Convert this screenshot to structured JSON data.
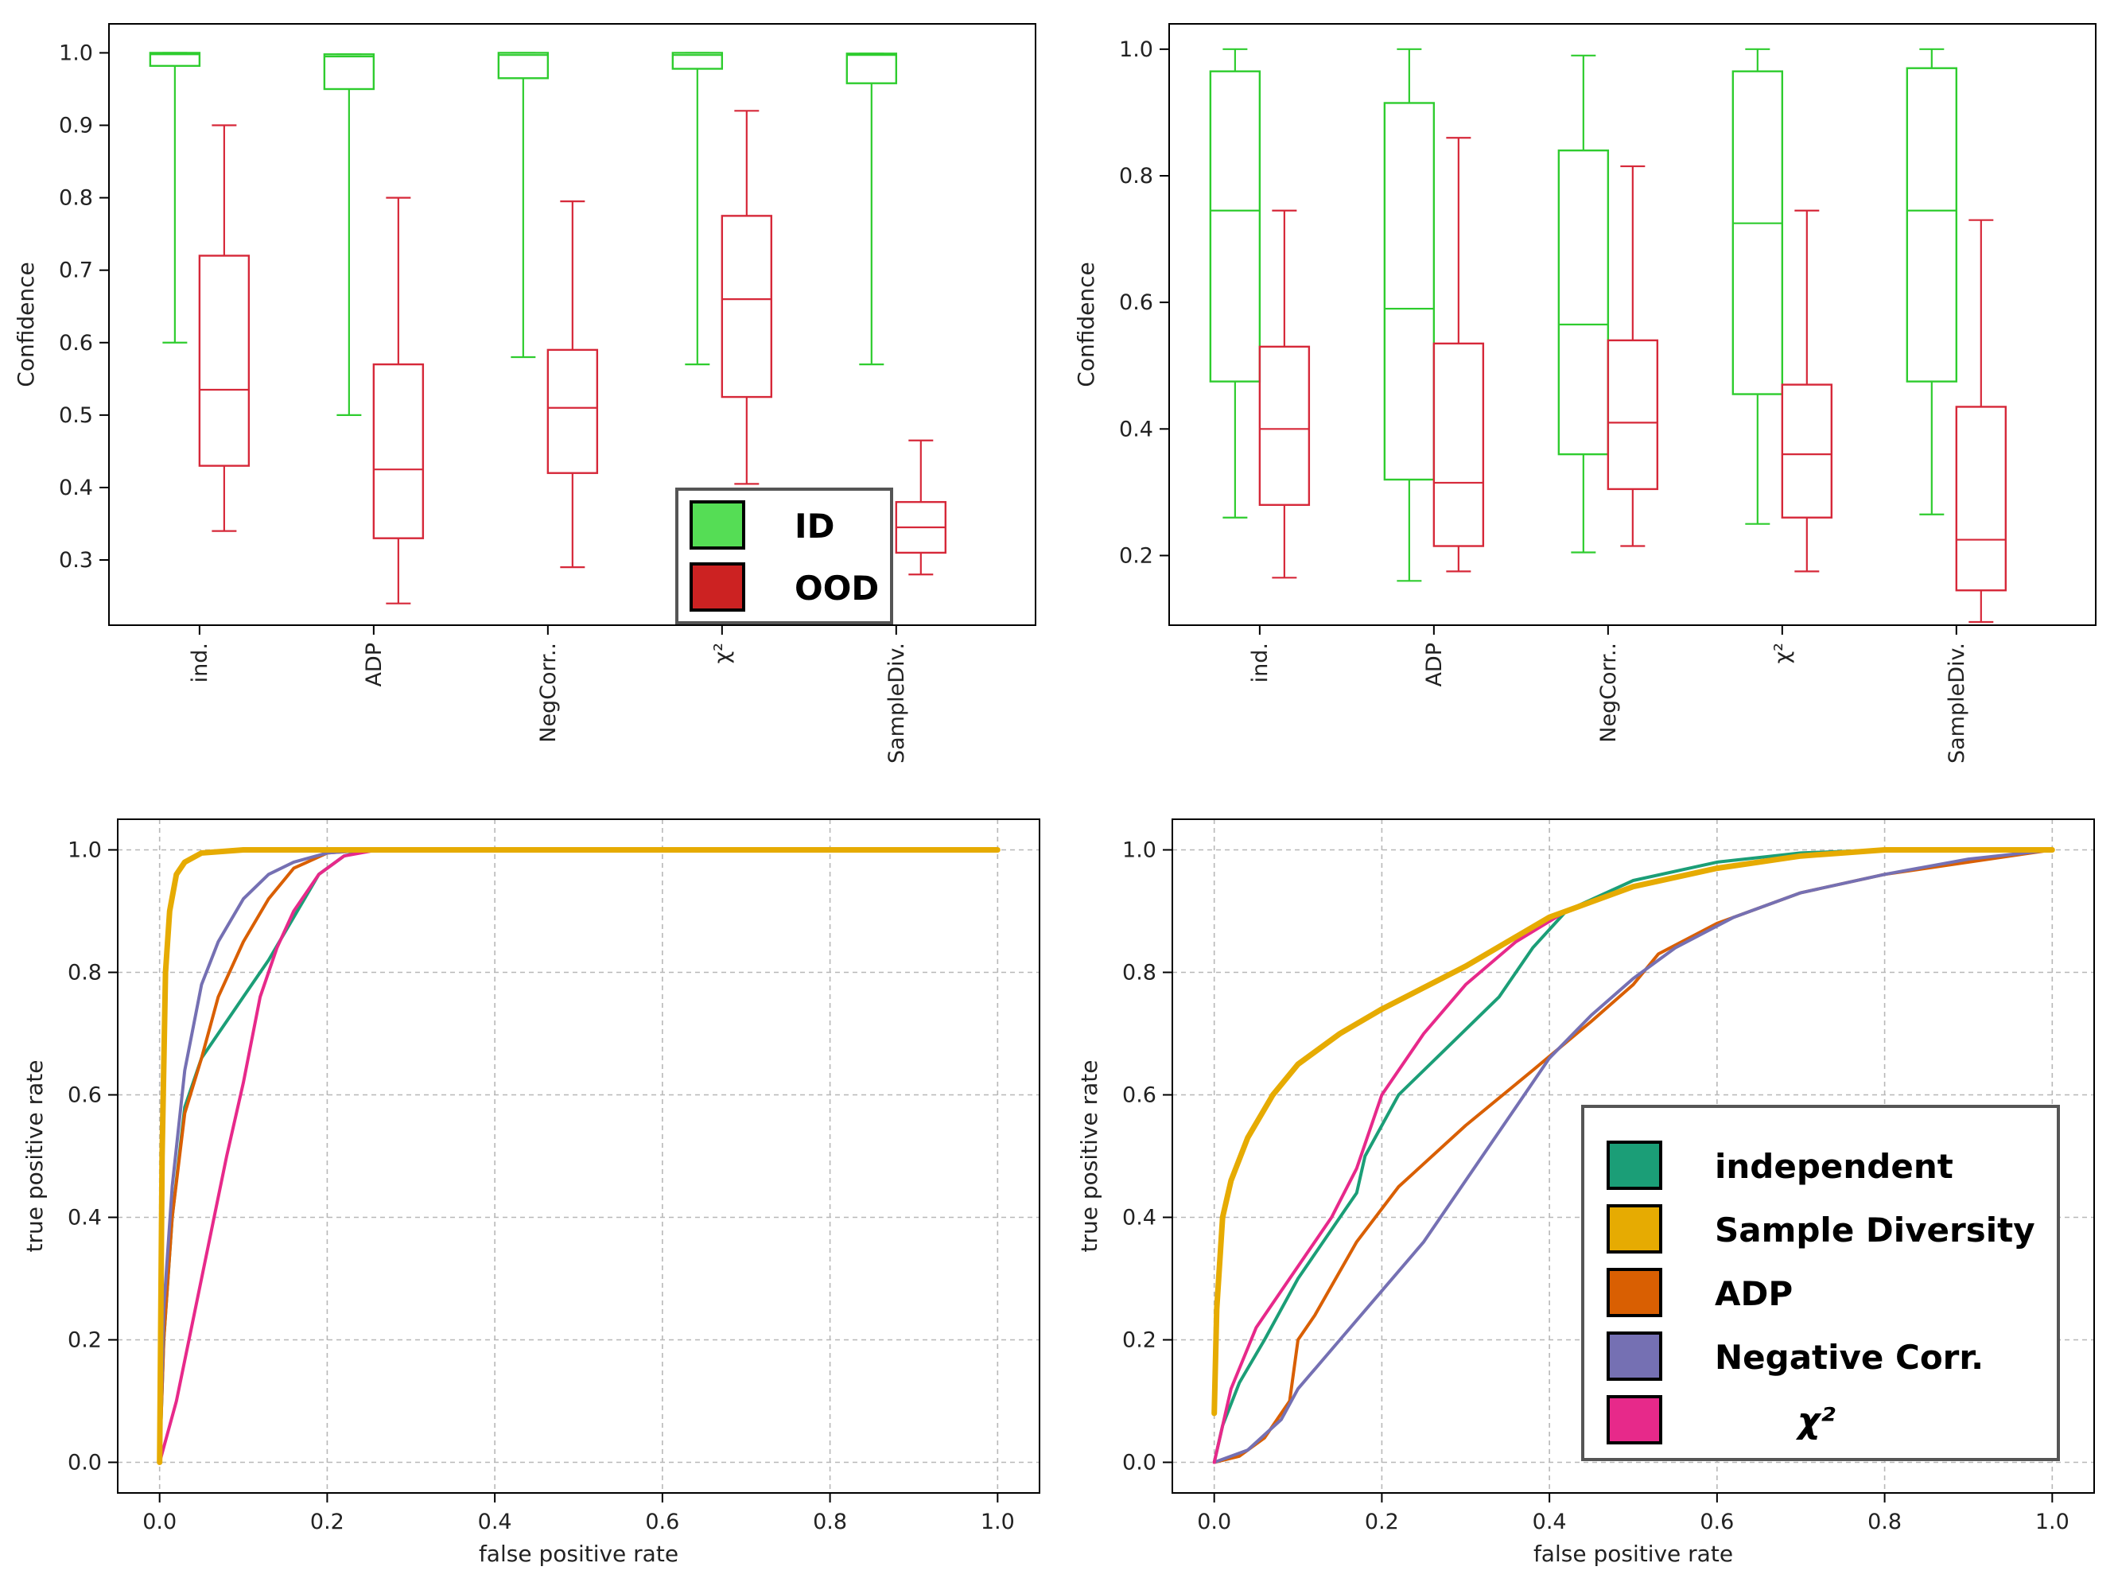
{
  "colors": {
    "id": "#2ecc2e",
    "ood": "#d62839",
    "independent": "#1b9e77",
    "sample_diversity": "#e6ab02",
    "adp": "#d95f02",
    "negative_corr": "#7570b3",
    "chi2": "#e7298a",
    "id_legend_fill": "#55dd55",
    "ood_legend_fill": "#cc2222"
  },
  "chart_data": [
    {
      "type": "box",
      "ylabel": "Confidence",
      "ylim": [
        0.21,
        1.04
      ],
      "yticks": [
        "0.3",
        "0.4",
        "0.5",
        "0.6",
        "0.7",
        "0.8",
        "0.9",
        "1.0"
      ],
      "categories": [
        "ind.",
        "ADP",
        "NegCorr..",
        "χ²",
        "SampleDiv."
      ],
      "legend": {
        "position": "lower-right",
        "items": [
          "ID",
          "OOD"
        ]
      },
      "series": [
        {
          "name": "ID",
          "boxes": [
            {
              "whislo": 0.6,
              "q1": 0.982,
              "med": 0.998,
              "q3": 1.0,
              "whishi": 1.0
            },
            {
              "whislo": 0.5,
              "q1": 0.95,
              "med": 0.995,
              "q3": 0.998,
              "whishi": 0.998
            },
            {
              "whislo": 0.58,
              "q1": 0.965,
              "med": 0.997,
              "q3": 1.0,
              "whishi": 1.0
            },
            {
              "whislo": 0.57,
              "q1": 0.978,
              "med": 0.997,
              "q3": 1.0,
              "whishi": 1.0
            },
            {
              "whislo": 0.57,
              "q1": 0.958,
              "med": 0.997,
              "q3": 0.999,
              "whishi": 0.999
            }
          ]
        },
        {
          "name": "OOD",
          "boxes": [
            {
              "whislo": 0.34,
              "q1": 0.43,
              "med": 0.535,
              "q3": 0.72,
              "whishi": 0.9
            },
            {
              "whislo": 0.24,
              "q1": 0.33,
              "med": 0.425,
              "q3": 0.57,
              "whishi": 0.8
            },
            {
              "whislo": 0.29,
              "q1": 0.42,
              "med": 0.51,
              "q3": 0.59,
              "whishi": 0.795
            },
            {
              "whislo": 0.405,
              "q1": 0.525,
              "med": 0.66,
              "q3": 0.775,
              "whishi": 0.92
            },
            {
              "whislo": 0.28,
              "q1": 0.31,
              "med": 0.345,
              "q3": 0.38,
              "whishi": 0.465
            }
          ]
        }
      ]
    },
    {
      "type": "box",
      "ylabel": "Confidence",
      "ylim": [
        0.09,
        1.04
      ],
      "yticks": [
        "0.2",
        "0.4",
        "0.6",
        "0.8",
        "1.0"
      ],
      "categories": [
        "ind.",
        "ADP",
        "NegCorr..",
        "χ²",
        "SampleDiv."
      ],
      "series": [
        {
          "name": "ID",
          "boxes": [
            {
              "whislo": 0.26,
              "q1": 0.475,
              "med": 0.745,
              "q3": 0.965,
              "whishi": 1.0
            },
            {
              "whislo": 0.16,
              "q1": 0.32,
              "med": 0.59,
              "q3": 0.915,
              "whishi": 1.0
            },
            {
              "whislo": 0.205,
              "q1": 0.36,
              "med": 0.565,
              "q3": 0.84,
              "whishi": 0.99
            },
            {
              "whislo": 0.25,
              "q1": 0.455,
              "med": 0.725,
              "q3": 0.965,
              "whishi": 1.0
            },
            {
              "whislo": 0.265,
              "q1": 0.475,
              "med": 0.745,
              "q3": 0.97,
              "whishi": 1.0
            }
          ]
        },
        {
          "name": "OOD",
          "boxes": [
            {
              "whislo": 0.165,
              "q1": 0.28,
              "med": 0.4,
              "q3": 0.53,
              "whishi": 0.745
            },
            {
              "whislo": 0.175,
              "q1": 0.215,
              "med": 0.315,
              "q3": 0.535,
              "whishi": 0.86
            },
            {
              "whislo": 0.215,
              "q1": 0.305,
              "med": 0.41,
              "q3": 0.54,
              "whishi": 0.815
            },
            {
              "whislo": 0.175,
              "q1": 0.26,
              "med": 0.36,
              "q3": 0.47,
              "whishi": 0.745
            },
            {
              "whislo": 0.095,
              "q1": 0.145,
              "med": 0.225,
              "q3": 0.435,
              "whishi": 0.73
            }
          ]
        }
      ]
    },
    {
      "type": "line",
      "xlabel": "false positive rate",
      "ylabel": "true positive rate",
      "xlim": [
        -0.05,
        1.05
      ],
      "ylim": [
        -0.05,
        1.05
      ],
      "xticks": [
        "0.0",
        "0.2",
        "0.4",
        "0.6",
        "0.8",
        "1.0"
      ],
      "yticks": [
        "0.0",
        "0.2",
        "0.4",
        "0.6",
        "0.8",
        "1.0"
      ],
      "grid": true,
      "series": [
        {
          "name": "independent",
          "color_key": "independent",
          "points": [
            [
              0,
              0
            ],
            [
              0.005,
              0.2
            ],
            [
              0.015,
              0.4
            ],
            [
              0.03,
              0.58
            ],
            [
              0.05,
              0.66
            ],
            [
              0.075,
              0.71
            ],
            [
              0.1,
              0.76
            ],
            [
              0.13,
              0.82
            ],
            [
              0.16,
              0.89
            ],
            [
              0.19,
              0.96
            ],
            [
              0.22,
              0.99
            ],
            [
              0.25,
              1.0
            ],
            [
              1.0,
              1.0
            ]
          ]
        },
        {
          "name": "Sample Diversity",
          "color_key": "sample_diversity",
          "points": [
            [
              0,
              0
            ],
            [
              0.003,
              0.5
            ],
            [
              0.007,
              0.8
            ],
            [
              0.012,
              0.9
            ],
            [
              0.02,
              0.96
            ],
            [
              0.03,
              0.98
            ],
            [
              0.05,
              0.995
            ],
            [
              0.1,
              1.0
            ],
            [
              1.0,
              1.0
            ]
          ]
        },
        {
          "name": "ADP",
          "color_key": "adp",
          "points": [
            [
              0,
              0
            ],
            [
              0.005,
              0.2
            ],
            [
              0.015,
              0.4
            ],
            [
              0.03,
              0.57
            ],
            [
              0.05,
              0.66
            ],
            [
              0.07,
              0.76
            ],
            [
              0.1,
              0.85
            ],
            [
              0.13,
              0.92
            ],
            [
              0.16,
              0.97
            ],
            [
              0.2,
              0.995
            ],
            [
              0.25,
              1.0
            ],
            [
              1.0,
              1.0
            ]
          ]
        },
        {
          "name": "Negative Corr.",
          "color_key": "negative_corr",
          "points": [
            [
              0,
              0
            ],
            [
              0.005,
              0.25
            ],
            [
              0.015,
              0.45
            ],
            [
              0.03,
              0.64
            ],
            [
              0.05,
              0.78
            ],
            [
              0.07,
              0.85
            ],
            [
              0.1,
              0.92
            ],
            [
              0.13,
              0.96
            ],
            [
              0.16,
              0.98
            ],
            [
              0.2,
              0.995
            ],
            [
              0.25,
              1.0
            ],
            [
              1.0,
              1.0
            ]
          ]
        },
        {
          "name": "χ²",
          "color_key": "chi2",
          "points": [
            [
              0,
              0
            ],
            [
              0.02,
              0.1
            ],
            [
              0.05,
              0.3
            ],
            [
              0.08,
              0.5
            ],
            [
              0.1,
              0.62
            ],
            [
              0.12,
              0.76
            ],
            [
              0.14,
              0.84
            ],
            [
              0.16,
              0.9
            ],
            [
              0.19,
              0.96
            ],
            [
              0.22,
              0.99
            ],
            [
              0.26,
              1.0
            ],
            [
              1.0,
              1.0
            ]
          ]
        }
      ]
    },
    {
      "type": "line",
      "xlabel": "false positive rate",
      "ylabel": "true positive rate",
      "xlim": [
        -0.05,
        1.05
      ],
      "ylim": [
        -0.05,
        1.05
      ],
      "xticks": [
        "0.0",
        "0.2",
        "0.4",
        "0.6",
        "0.8",
        "1.0"
      ],
      "yticks": [
        "0.0",
        "0.2",
        "0.4",
        "0.6",
        "0.8",
        "1.0"
      ],
      "grid": true,
      "legend": {
        "position": "lower-right",
        "items": [
          "independent",
          "Sample Diversity",
          "ADP",
          "Negative Corr.",
          "χ²"
        ]
      },
      "series": [
        {
          "name": "independent",
          "color_key": "independent",
          "points": [
            [
              0,
              0
            ],
            [
              0.01,
              0.06
            ],
            [
              0.03,
              0.13
            ],
            [
              0.06,
              0.2
            ],
            [
              0.1,
              0.3
            ],
            [
              0.15,
              0.4
            ],
            [
              0.17,
              0.44
            ],
            [
              0.18,
              0.5
            ],
            [
              0.22,
              0.6
            ],
            [
              0.28,
              0.68
            ],
            [
              0.34,
              0.76
            ],
            [
              0.38,
              0.84
            ],
            [
              0.42,
              0.9
            ],
            [
              0.5,
              0.95
            ],
            [
              0.6,
              0.98
            ],
            [
              0.7,
              0.995
            ],
            [
              0.8,
              1.0
            ],
            [
              1.0,
              1.0
            ]
          ]
        },
        {
          "name": "Sample Diversity",
          "color_key": "sample_diversity",
          "points": [
            [
              0,
              0.08
            ],
            [
              0.003,
              0.25
            ],
            [
              0.01,
              0.4
            ],
            [
              0.02,
              0.46
            ],
            [
              0.04,
              0.53
            ],
            [
              0.07,
              0.6
            ],
            [
              0.1,
              0.65
            ],
            [
              0.15,
              0.7
            ],
            [
              0.2,
              0.74
            ],
            [
              0.3,
              0.81
            ],
            [
              0.4,
              0.89
            ],
            [
              0.5,
              0.94
            ],
            [
              0.6,
              0.97
            ],
            [
              0.7,
              0.99
            ],
            [
              0.8,
              1.0
            ],
            [
              1.0,
              1.0
            ]
          ]
        },
        {
          "name": "ADP",
          "color_key": "adp",
          "points": [
            [
              0,
              0
            ],
            [
              0.03,
              0.01
            ],
            [
              0.06,
              0.04
            ],
            [
              0.09,
              0.1
            ],
            [
              0.1,
              0.2
            ],
            [
              0.12,
              0.24
            ],
            [
              0.17,
              0.36
            ],
            [
              0.22,
              0.45
            ],
            [
              0.3,
              0.55
            ],
            [
              0.38,
              0.64
            ],
            [
              0.45,
              0.72
            ],
            [
              0.5,
              0.78
            ],
            [
              0.53,
              0.83
            ],
            [
              0.6,
              0.88
            ],
            [
              0.7,
              0.93
            ],
            [
              0.8,
              0.96
            ],
            [
              0.9,
              0.98
            ],
            [
              1.0,
              1.0
            ]
          ]
        },
        {
          "name": "Negative Corr.",
          "color_key": "negative_corr",
          "points": [
            [
              0,
              0
            ],
            [
              0.04,
              0.02
            ],
            [
              0.08,
              0.07
            ],
            [
              0.1,
              0.12
            ],
            [
              0.15,
              0.2
            ],
            [
              0.2,
              0.28
            ],
            [
              0.25,
              0.36
            ],
            [
              0.3,
              0.46
            ],
            [
              0.35,
              0.56
            ],
            [
              0.4,
              0.66
            ],
            [
              0.45,
              0.73
            ],
            [
              0.5,
              0.79
            ],
            [
              0.55,
              0.84
            ],
            [
              0.62,
              0.89
            ],
            [
              0.7,
              0.93
            ],
            [
              0.8,
              0.96
            ],
            [
              0.9,
              0.985
            ],
            [
              1.0,
              1.0
            ]
          ]
        },
        {
          "name": "χ²",
          "color_key": "chi2",
          "points": [
            [
              0,
              0
            ],
            [
              0.02,
              0.12
            ],
            [
              0.05,
              0.22
            ],
            [
              0.09,
              0.3
            ],
            [
              0.14,
              0.4
            ],
            [
              0.17,
              0.48
            ],
            [
              0.2,
              0.6
            ],
            [
              0.25,
              0.7
            ],
            [
              0.3,
              0.78
            ],
            [
              0.36,
              0.85
            ],
            [
              0.42,
              0.9
            ],
            [
              0.5,
              0.94
            ],
            [
              0.6,
              0.97
            ],
            [
              0.7,
              0.99
            ],
            [
              0.8,
              1.0
            ],
            [
              1.0,
              1.0
            ]
          ]
        }
      ]
    }
  ]
}
